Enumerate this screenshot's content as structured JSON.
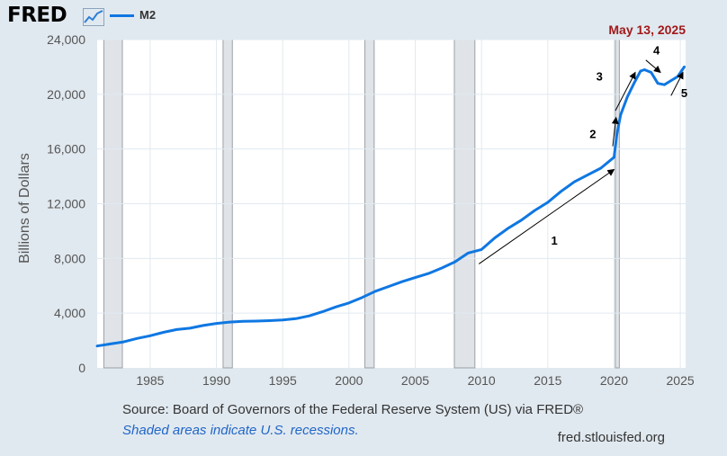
{
  "header": {
    "logo_text": "FRED",
    "series_label": "M2",
    "series_color": "#0f77e2",
    "date_label": "May 13, 2025"
  },
  "chart_data": {
    "type": "line",
    "title": "",
    "xlabel": "",
    "ylabel": "Billions of Dollars",
    "xlim": [
      1981,
      2025.4
    ],
    "ylim": [
      0,
      24000
    ],
    "x_ticks": [
      1985,
      1990,
      1995,
      2000,
      2005,
      2010,
      2015,
      2020,
      2025
    ],
    "y_ticks": [
      0,
      4000,
      8000,
      12000,
      16000,
      20000,
      24000
    ],
    "grid": true,
    "series": [
      {
        "name": "M2",
        "x": [
          1981.0,
          1982.0,
          1983.0,
          1984.0,
          1985.0,
          1986.0,
          1987.0,
          1988.0,
          1989.0,
          1990.0,
          1991.0,
          1992.0,
          1993.0,
          1994.0,
          1995.0,
          1996.0,
          1997.0,
          1998.0,
          1999.0,
          2000.0,
          2001.0,
          2002.0,
          2003.0,
          2004.0,
          2005.0,
          2006.0,
          2007.0,
          2008.0,
          2009.0,
          2010.0,
          2011.0,
          2012.0,
          2013.0,
          2014.0,
          2015.0,
          2016.0,
          2017.0,
          2018.0,
          2019.0,
          2020.0,
          2020.2,
          2020.5,
          2021.0,
          2021.5,
          2022.0,
          2022.3,
          2022.8,
          2023.3,
          2023.8,
          2024.3,
          2024.8,
          2025.3
        ],
        "y": [
          1600,
          1750,
          1900,
          2150,
          2350,
          2600,
          2800,
          2900,
          3100,
          3250,
          3350,
          3400,
          3420,
          3450,
          3500,
          3600,
          3800,
          4100,
          4450,
          4750,
          5150,
          5600,
          5950,
          6300,
          6600,
          6900,
          7300,
          7750,
          8400,
          8650,
          9500,
          10200,
          10800,
          11500,
          12100,
          12900,
          13600,
          14100,
          14600,
          15400,
          17000,
          18500,
          19800,
          20800,
          21700,
          21800,
          21600,
          20800,
          20700,
          21000,
          21300,
          22000
        ]
      }
    ],
    "recessions": [
      {
        "start": 1981.5,
        "end": 1982.9
      },
      {
        "start": 1990.5,
        "end": 1991.2
      },
      {
        "start": 2001.2,
        "end": 2001.9
      },
      {
        "start": 2007.95,
        "end": 2009.5
      },
      {
        "start": 2020.1,
        "end": 2020.4
      }
    ],
    "annotations": [
      {
        "label": "1",
        "from": [
          2009.8,
          7600
        ],
        "to": [
          2020.0,
          14500
        ],
        "text_at": [
          2015.5,
          9000
        ]
      },
      {
        "label": "2",
        "from": [
          2019.9,
          16200
        ],
        "to": [
          2020.15,
          18300
        ],
        "text_at": [
          2018.4,
          16800
        ]
      },
      {
        "label": "3",
        "from": [
          2020.1,
          18800
        ],
        "to": [
          2021.6,
          21600
        ],
        "text_at": [
          2018.9,
          21000
        ]
      },
      {
        "label": "4",
        "from": [
          2022.4,
          22500
        ],
        "to": [
          2023.5,
          21600
        ],
        "text_at": [
          2023.2,
          22900
        ]
      },
      {
        "label": "5",
        "from": [
          2024.3,
          19900
        ],
        "to": [
          2025.2,
          21600
        ],
        "text_at": [
          2025.3,
          19800
        ]
      }
    ]
  },
  "footer": {
    "source": "Source: Board of Governors of the Federal Reserve System (US) via FRED®",
    "note": "Shaded areas indicate U.S. recessions.",
    "url": "fred.stlouisfed.org"
  }
}
